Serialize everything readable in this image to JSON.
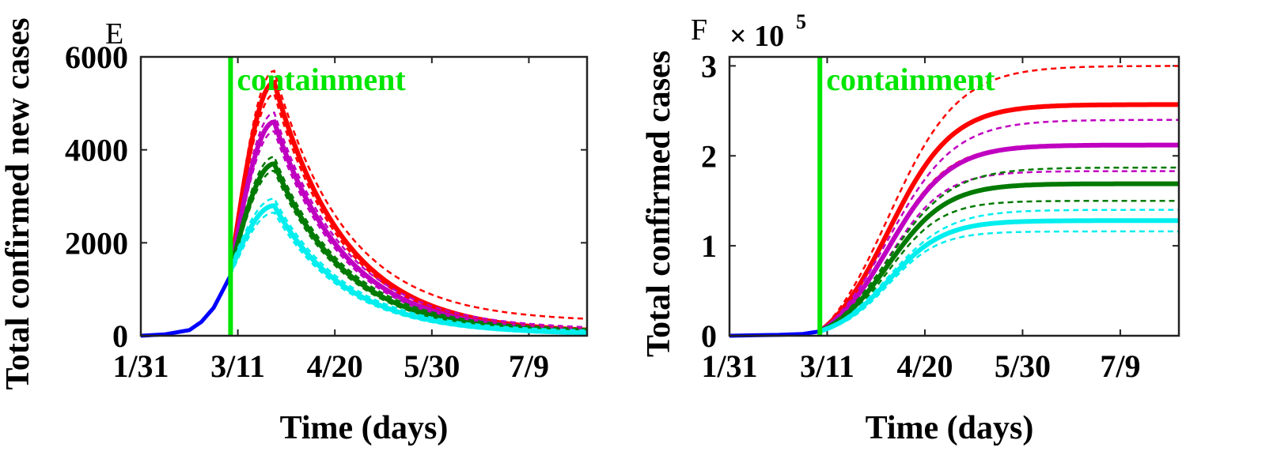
{
  "chart_data": [
    {
      "panel": "E",
      "type": "line",
      "ylabel": "Total confirmed new cases",
      "xlabel": "Time (days)",
      "xlim": [
        0,
        184
      ],
      "ylim": [
        0,
        6000
      ],
      "x_ticks": [
        0,
        40,
        80,
        120,
        160
      ],
      "x_tick_labels": [
        "1/31",
        "3/11",
        "4/20",
        "5/30",
        "7/9"
      ],
      "y_ticks": [
        0,
        2000,
        4000,
        6000
      ],
      "y_tick_labels": [
        "0",
        "2000",
        "4000",
        "6000"
      ],
      "annotation": {
        "text": "containment",
        "x": 37,
        "color": "#00e600"
      },
      "pre_containment": {
        "color": "#0000ff",
        "x": [
          0,
          10,
          20,
          25,
          30,
          33,
          35,
          37
        ],
        "y": [
          0,
          30,
          120,
          300,
          600,
          900,
          1100,
          1300
        ]
      },
      "series": [
        {
          "name": "red",
          "color": "#ff0000",
          "peak_x": 55,
          "peak_y": 5450,
          "upper_peak": 5700,
          "lower_peak": 5200,
          "tail_y": 60,
          "upper_tail": 300,
          "lower_tail": 20
        },
        {
          "name": "magenta",
          "color": "#c000c0",
          "peak_x": 55,
          "peak_y": 4600,
          "upper_peak": 4800,
          "lower_peak": 4400,
          "tail_y": 50,
          "upper_tail": 130,
          "lower_tail": 15
        },
        {
          "name": "green",
          "color": "#007a00",
          "peak_x": 55,
          "peak_y": 3700,
          "upper_peak": 3850,
          "lower_peak": 3550,
          "tail_y": 40,
          "upper_tail": 100,
          "lower_tail": 10
        },
        {
          "name": "cyan",
          "color": "#00eeee",
          "peak_x": 55,
          "peak_y": 2800,
          "upper_peak": 2950,
          "lower_peak": 2650,
          "tail_y": 30,
          "upper_tail": 80,
          "lower_tail": 5
        }
      ]
    },
    {
      "panel": "F",
      "type": "line",
      "ylabel": "Total confirmed cases",
      "xlabel": "Time (days)",
      "xlim": [
        0,
        184
      ],
      "ylim": [
        0,
        3.1
      ],
      "y_multiplier": {
        "base": "× 10",
        "exponent": "5"
      },
      "x_ticks": [
        0,
        40,
        80,
        120,
        160
      ],
      "x_tick_labels": [
        "1/31",
        "3/11",
        "4/20",
        "5/30",
        "7/9"
      ],
      "y_ticks": [
        0,
        1,
        2,
        3
      ],
      "y_tick_labels": [
        "0",
        "1",
        "2",
        "3"
      ],
      "annotation": {
        "text": "containment",
        "x": 37,
        "color": "#00e600"
      },
      "pre_containment": {
        "color": "#0000ff",
        "x": [
          0,
          10,
          20,
          30,
          35,
          37
        ],
        "y": [
          0,
          0.005,
          0.01,
          0.02,
          0.04,
          0.05
        ]
      },
      "series": [
        {
          "name": "red",
          "color": "#ff0000",
          "final": 2.57,
          "upper_final": 3.0,
          "lower_final": 2.12,
          "rate": 0.04
        },
        {
          "name": "magenta",
          "color": "#c000c0",
          "final": 2.12,
          "upper_final": 2.4,
          "lower_final": 1.83,
          "rate": 0.042
        },
        {
          "name": "green",
          "color": "#007a00",
          "final": 1.69,
          "upper_final": 1.87,
          "lower_final": 1.5,
          "rate": 0.044
        },
        {
          "name": "cyan",
          "color": "#00eeee",
          "final": 1.28,
          "upper_final": 1.4,
          "lower_final": 1.16,
          "rate": 0.046
        }
      ]
    }
  ]
}
